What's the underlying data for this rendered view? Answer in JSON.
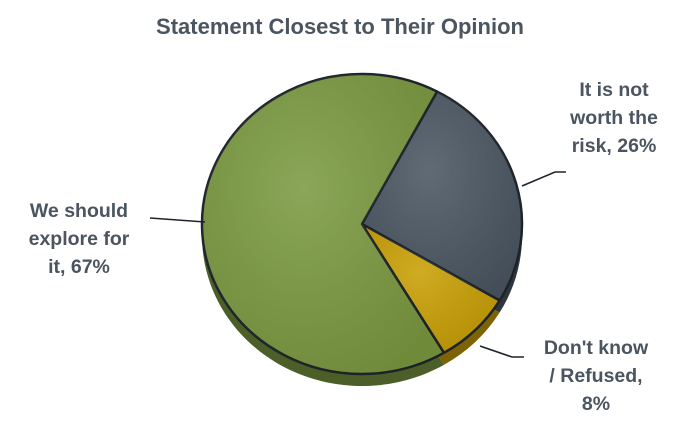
{
  "chart_data": {
    "type": "pie",
    "title": "Statement Closest to Their Opinion",
    "slices": [
      {
        "label_lines": [
          "We should",
          "explore for",
          "it, 67%"
        ],
        "value": 67,
        "color": "#7b9a41"
      },
      {
        "label_lines": [
          "It is not",
          "worth the",
          "risk, 26%"
        ],
        "value": 26,
        "color": "#4b5763"
      },
      {
        "label_lines": [
          "Don't know",
          "/ Refused,",
          "8%"
        ],
        "value": 8,
        "color": "#c9a005"
      }
    ],
    "legend": "none",
    "data_labels": "outside-with-leader-lines"
  }
}
